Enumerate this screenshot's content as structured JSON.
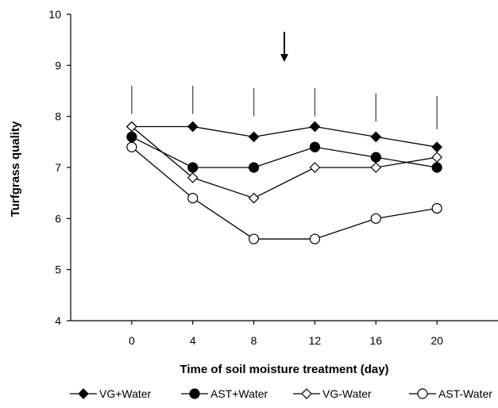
{
  "chart_data": {
    "type": "line",
    "xlabel": "Time of soil moisture treatment (day)",
    "ylabel": "Turfgrass quality",
    "x": [
      0,
      4,
      8,
      12,
      16,
      20
    ],
    "xticks": [
      "0",
      "4",
      "8",
      "12",
      "16",
      "20"
    ],
    "yticks": [
      "4",
      "5",
      "6",
      "7",
      "8",
      "9",
      "10"
    ],
    "xlim": [
      -4,
      24
    ],
    "ylim": [
      4,
      10
    ],
    "grid": false,
    "legend_position": "bottom",
    "annotation_arrow_x": 10,
    "lsd_bars": [
      {
        "x": 0,
        "low": 8.05,
        "high": 8.6
      },
      {
        "x": 4,
        "low": 8.05,
        "high": 8.6
      },
      {
        "x": 8,
        "low": 8.0,
        "high": 8.55
      },
      {
        "x": 12,
        "low": 8.0,
        "high": 8.55
      },
      {
        "x": 16,
        "low": 7.9,
        "high": 8.45
      },
      {
        "x": 20,
        "low": 7.75,
        "high": 8.4
      }
    ],
    "series": [
      {
        "name": "VG+Water",
        "marker": "diamond-filled",
        "values": [
          7.8,
          7.8,
          7.6,
          7.8,
          7.6,
          7.4
        ]
      },
      {
        "name": "AST+Water",
        "marker": "circle-filled",
        "values": [
          7.6,
          7.0,
          7.0,
          7.4,
          7.2,
          7.0
        ]
      },
      {
        "name": "VG-Water",
        "marker": "diamond-open",
        "values": [
          7.8,
          6.8,
          6.4,
          7.0,
          7.0,
          7.2
        ]
      },
      {
        "name": "AST-Water",
        "marker": "circle-open",
        "values": [
          7.4,
          6.4,
          5.6,
          5.6,
          6.0,
          6.2
        ]
      }
    ]
  }
}
